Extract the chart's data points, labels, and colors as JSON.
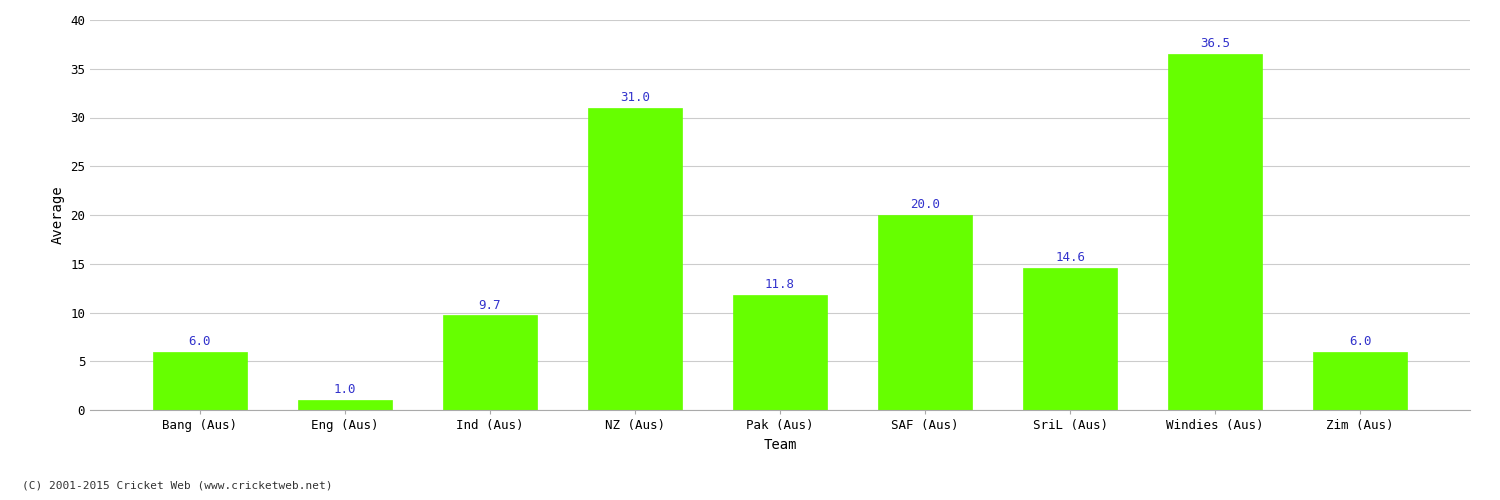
{
  "categories": [
    "Bang (Aus)",
    "Eng (Aus)",
    "Ind (Aus)",
    "NZ (Aus)",
    "Pak (Aus)",
    "SAF (Aus)",
    "SriL (Aus)",
    "Windies (Aus)",
    "Zim (Aus)"
  ],
  "values": [
    6.0,
    1.0,
    9.7,
    31.0,
    11.8,
    20.0,
    14.6,
    36.5,
    6.0
  ],
  "bar_color": "#66ff00",
  "bar_edge_color": "#66ff00",
  "label_color": "#3333cc",
  "xlabel": "Team",
  "ylabel": "Average",
  "ylim": [
    0,
    40
  ],
  "yticks": [
    0,
    5,
    10,
    15,
    20,
    25,
    30,
    35,
    40
  ],
  "label_fontsize": 9,
  "axis_label_fontsize": 10,
  "tick_fontsize": 9,
  "background_color": "#ffffff",
  "grid_color": "#cccccc",
  "footer_text": "(C) 2001-2015 Cricket Web (www.cricketweb.net)"
}
